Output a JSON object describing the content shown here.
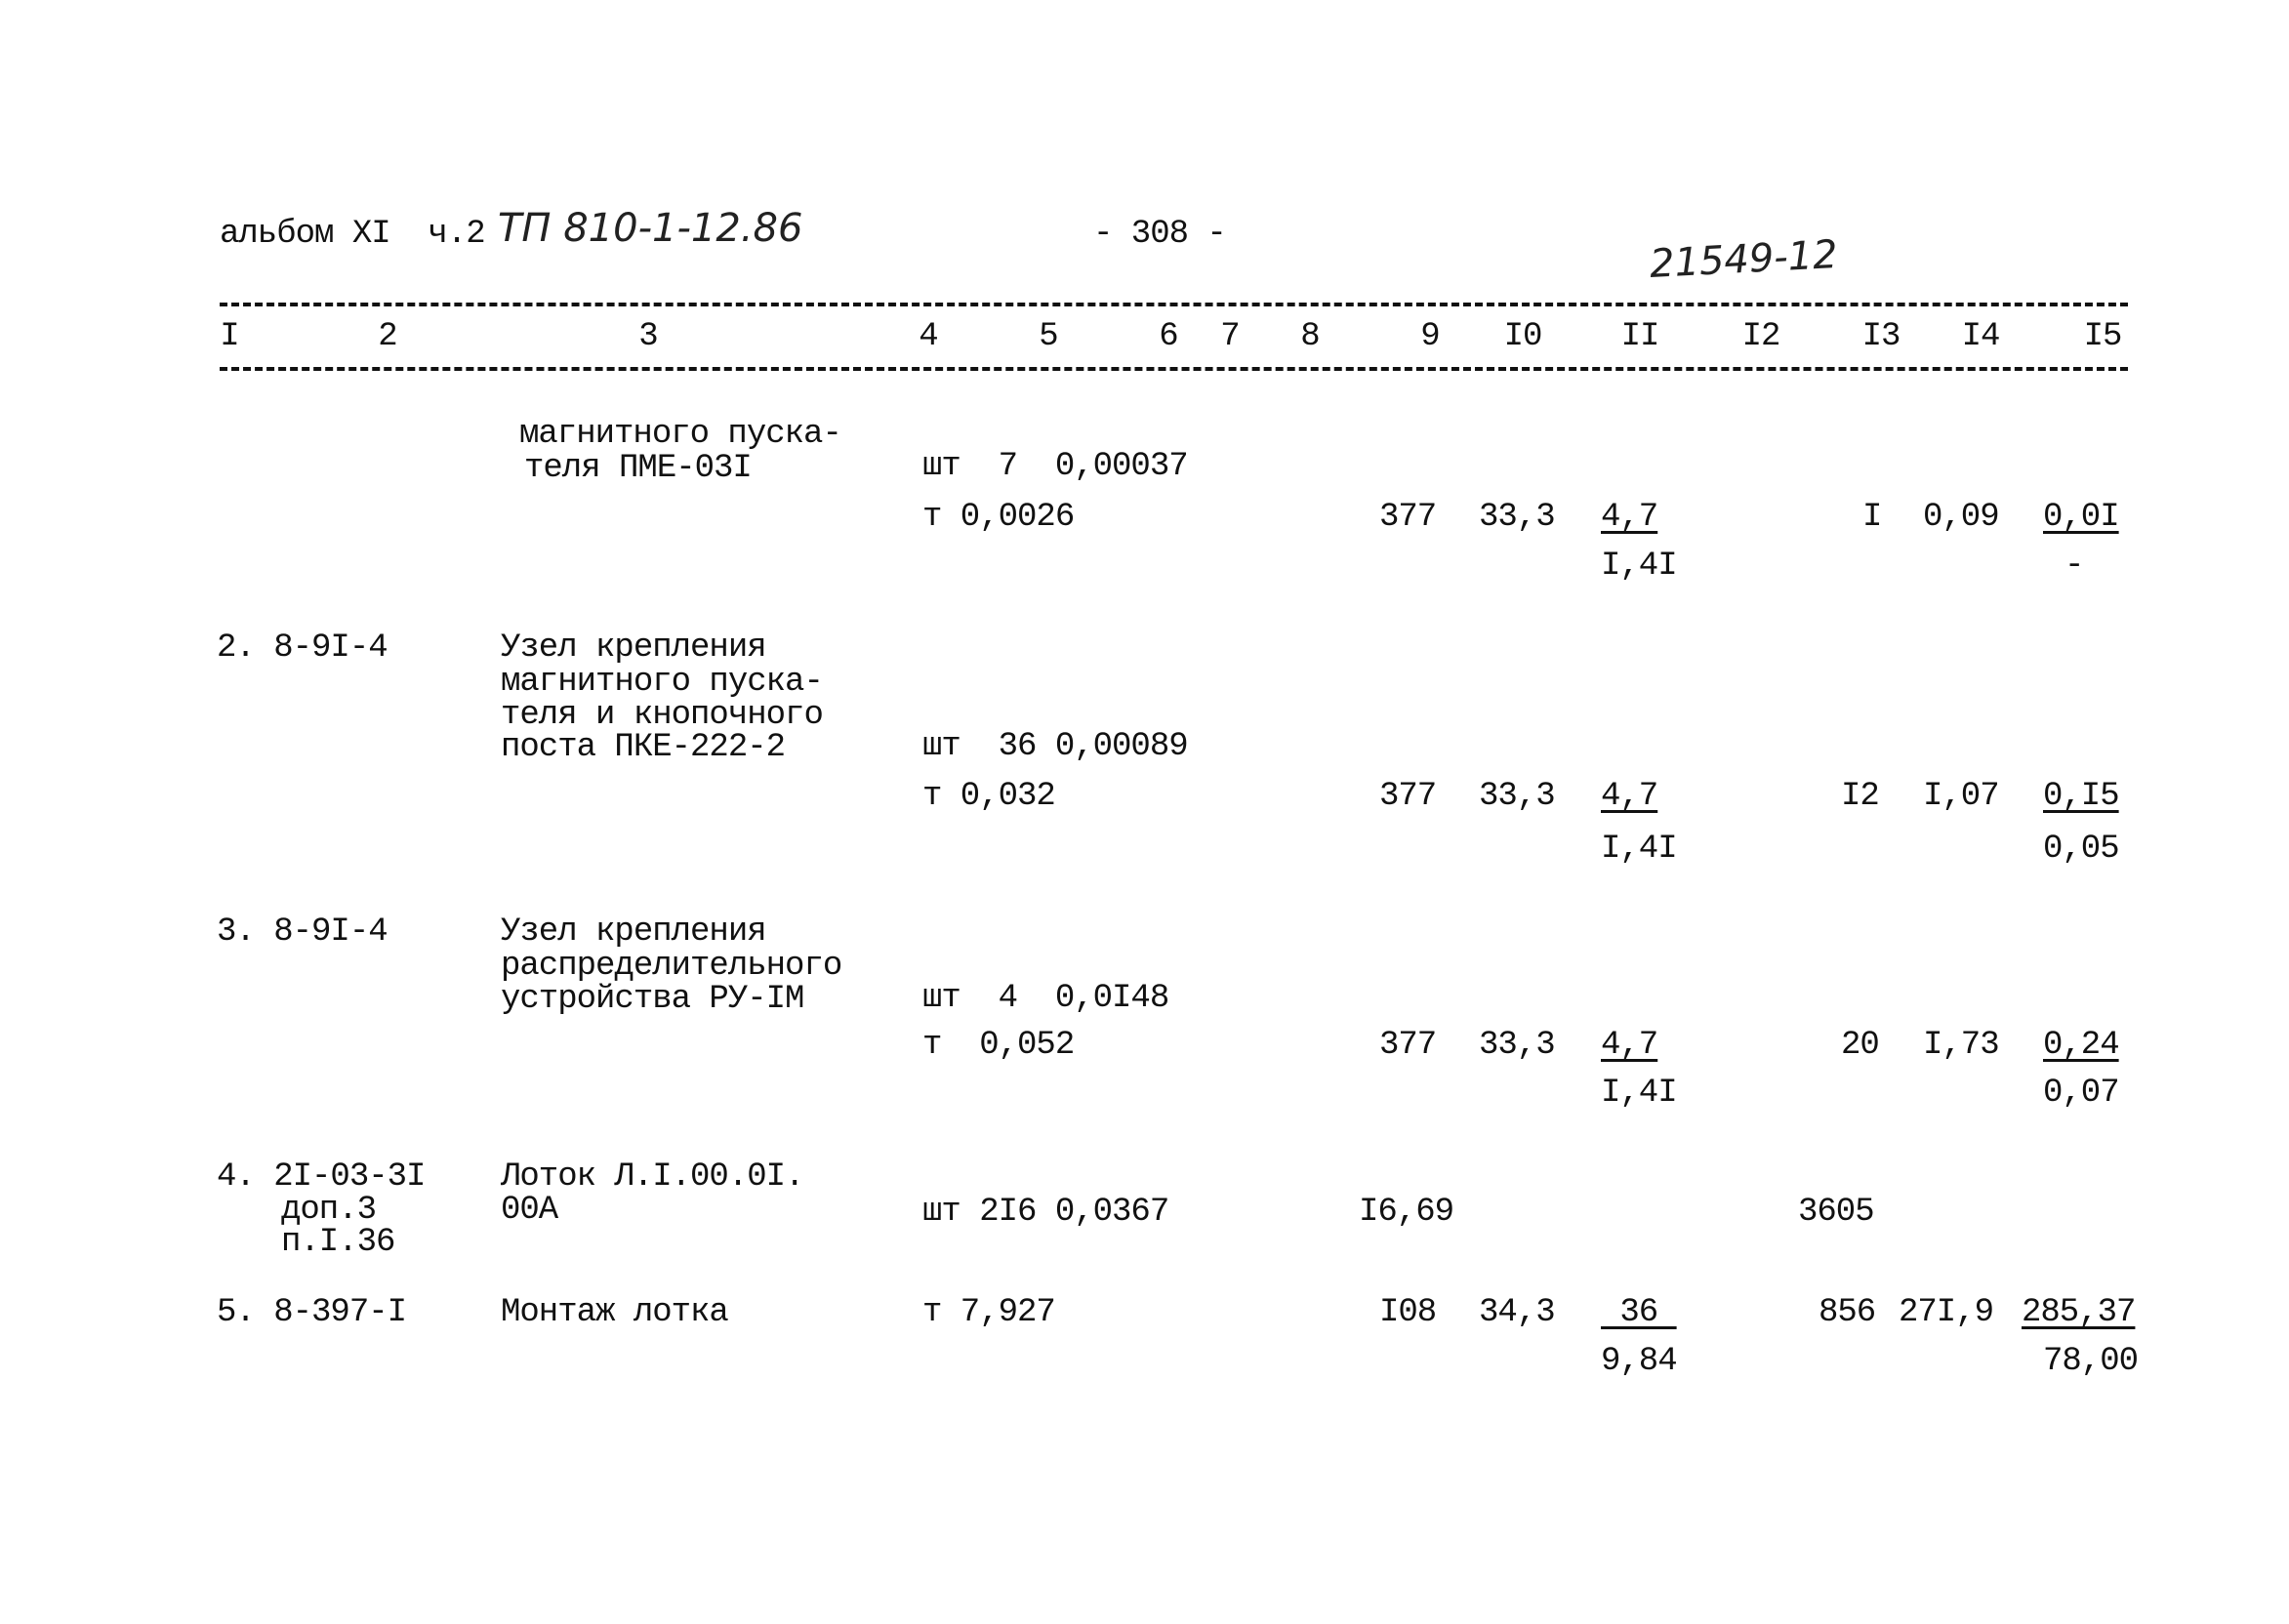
{
  "header": {
    "album": "альбом XI  ч.2",
    "project_handwritten": "ТП 810-1-12.86",
    "page_number": "- 308 -",
    "doc_number_handwritten": "21549-12"
  },
  "columns": [
    "I",
    "2",
    "3",
    "4",
    "5",
    "6",
    "7",
    "8",
    "9",
    "I0",
    "II",
    "I2",
    "I3",
    "I4",
    "I5"
  ],
  "rows": [
    {
      "desc": [
        "магнитного пуска-",
        "теля ПМЕ-03I"
      ],
      "qty1": "шт  7  0,00037",
      "qty2": "т 0,0026",
      "c9": "377",
      "c10": "33,3",
      "c11_top": "4,7",
      "c11_bottom": "I,4I",
      "c13": "I",
      "c14": "0,09",
      "c15_top": "0,0I",
      "c15_bottom": "-"
    },
    {
      "num": "2. 8-9I-4",
      "desc": [
        "Узел крепления",
        "магнитного пуска-",
        "теля и кнопочного",
        "поста ПКЕ-222-2"
      ],
      "qty1": "шт  36 0,00089",
      "qty2": "т 0,032",
      "c9": "377",
      "c10": "33,3",
      "c11_top": "4,7",
      "c11_bottom": "I,4I",
      "c13": "I2",
      "c14": "I,07",
      "c15_top": "0,I5",
      "c15_bottom": "0,05"
    },
    {
      "num": "3. 8-9I-4",
      "desc": [
        "Узел крепления",
        "распределительного",
        "устройства РУ-IМ"
      ],
      "qty1": "шт  4  0,0I48",
      "qty2": "т  0,052",
      "c9": "377",
      "c10": "33,3",
      "c11_top": "4,7",
      "c11_bottom": "I,4I",
      "c13": "20",
      "c14": "I,73",
      "c15_top": "0,24",
      "c15_bottom": "0,07"
    },
    {
      "num": "4. 2I-03-3I",
      "num_extra": [
        "доп.3",
        "п.I.36"
      ],
      "desc": [
        "Лоток Л.I.00.0I.",
        "00А"
      ],
      "qty1": "шт 2I6 0,0367",
      "c9": "I6,69",
      "c12": "3605"
    },
    {
      "num": "5. 8-397-I",
      "desc": [
        "Монтаж лотка"
      ],
      "qty1": "т 7,927",
      "c9": "I08",
      "c10": "34,3",
      "c11_top": " 36 ",
      "c11_bottom": "9,84",
      "c12": "856",
      "c13": "27I,9",
      "c15_top": "285,37",
      "c15_bottom": "78,00"
    }
  ]
}
